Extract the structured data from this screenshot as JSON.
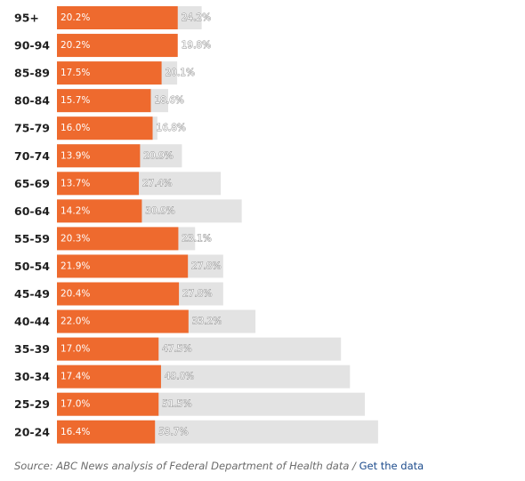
{
  "chart_data": {
    "type": "bar",
    "orientation": "horizontal",
    "stacked": false,
    "categories": [
      "95+",
      "90-94",
      "85-89",
      "80-84",
      "75-79",
      "70-74",
      "65-69",
      "60-64",
      "55-59",
      "50-54",
      "45-49",
      "40-44",
      "35-39",
      "30-34",
      "25-29",
      "20-24"
    ],
    "series": [
      {
        "color": "#ee6a2e",
        "labels": [
          "20.2%",
          "20.2%",
          "17.5%",
          "15.7%",
          "16.0%",
          "13.9%",
          "13.7%",
          "14.2%",
          "20.3%",
          "21.9%",
          "20.4%",
          "22.0%",
          "17.0%",
          "17.4%",
          "17.0%",
          "16.4%"
        ],
        "values": [
          20.2,
          20.2,
          17.5,
          15.7,
          16.0,
          13.9,
          13.7,
          14.2,
          20.3,
          21.9,
          20.4,
          22.0,
          17.0,
          17.4,
          17.0,
          16.4
        ]
      },
      {
        "color": "#e3e3e3",
        "labels": [
          "24.2%",
          "19.8%",
          "20.1%",
          "18.6%",
          "16.8%",
          "20.9%",
          "27.4%",
          "30.9%",
          "23.1%",
          "27.8%",
          "27.8%",
          "33.2%",
          "47.5%",
          "49.0%",
          "51.5%",
          "53.7%"
        ],
        "values": [
          24.2,
          19.8,
          20.1,
          18.6,
          16.8,
          20.9,
          27.4,
          30.9,
          23.1,
          27.8,
          27.8,
          33.2,
          47.5,
          49.0,
          51.5,
          53.7
        ]
      }
    ],
    "title": "",
    "xlabel": "",
    "ylabel": "",
    "grid": false,
    "legend": "none"
  },
  "source": {
    "text": "Source: ABC News analysis of Federal Department of Health data",
    "separator": " / ",
    "link_label": "Get the data"
  }
}
